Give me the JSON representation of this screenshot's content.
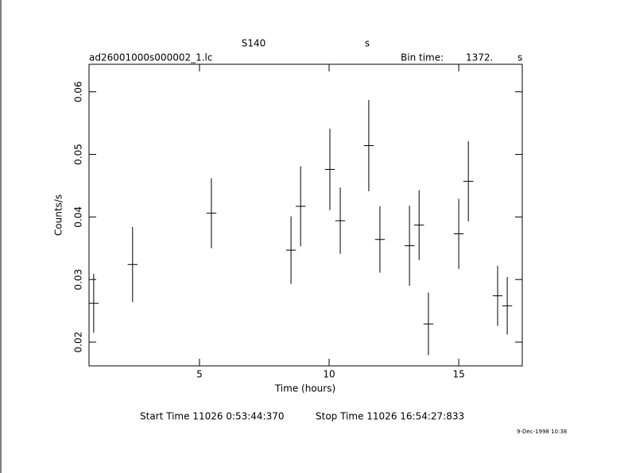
{
  "chart_data": {
    "type": "errorbar",
    "title": "S140",
    "title_unit": "s",
    "file_name": "ad26001000s000002_1.lc",
    "bin_time_label": "Bin time:",
    "bin_time": "1372.",
    "bin_time_unit": "s",
    "x_label": "Time (hours)",
    "y_label": "Counts/s",
    "start_time": "Start Time 11026  0:53:44:370",
    "stop_time": "Stop Time 11026 16:54:27:833",
    "date_stamp": "9-Dec-1998 10:38",
    "color": "#000000",
    "x": [
      0.92,
      2.42,
      5.46,
      8.53,
      8.9,
      10.03,
      10.43,
      11.53,
      11.96,
      13.1,
      13.47,
      13.83,
      15.0,
      15.37,
      16.5,
      16.87
    ],
    "values": [
      0.0262,
      0.0324,
      0.0406,
      0.0347,
      0.0417,
      0.0476,
      0.0394,
      0.0514,
      0.0364,
      0.0354,
      0.0387,
      0.0229,
      0.0373,
      0.0457,
      0.0274,
      0.0258
    ],
    "yerr": [
      0.0047,
      0.006,
      0.0056,
      0.0054,
      0.0064,
      0.0065,
      0.0053,
      0.0073,
      0.0053,
      0.0064,
      0.0056,
      0.005,
      0.0056,
      0.0064,
      0.0048,
      0.0046
    ],
    "xerr": 0.19,
    "xlim": [
      0.74,
      17.45
    ],
    "ylim": [
      0.0162,
      0.0644
    ],
    "xticks": [
      5,
      10,
      15
    ],
    "yticks": [
      0.02,
      0.03,
      0.04,
      0.05,
      0.06
    ]
  }
}
